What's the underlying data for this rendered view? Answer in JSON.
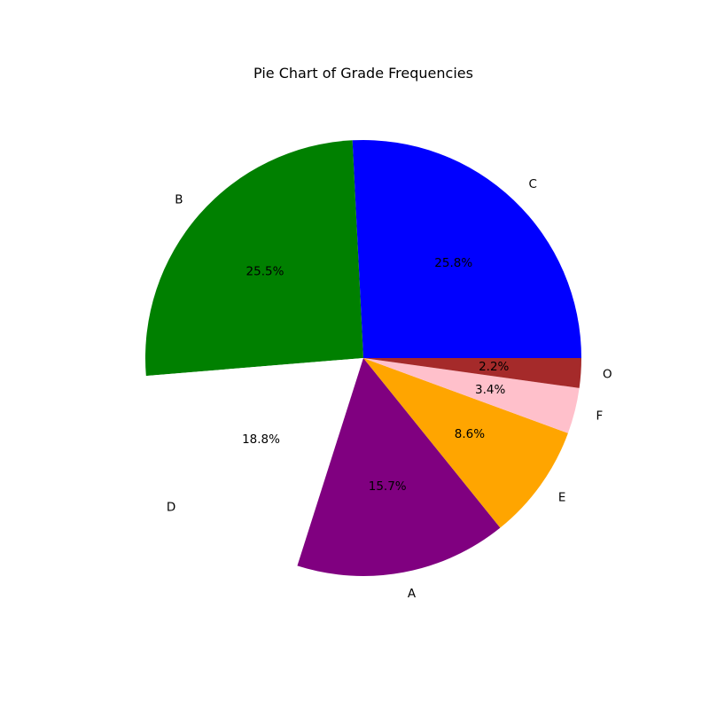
{
  "chart_data": {
    "type": "pie",
    "title": "Pie Chart of Grade Frequencies",
    "start_angle_deg": 0,
    "direction": "counterclockwise",
    "slices": [
      {
        "label": "C",
        "percent": 25.8,
        "percent_label": "25.8%",
        "color": "#0000ff"
      },
      {
        "label": "B",
        "percent": 25.5,
        "percent_label": "25.5%",
        "color": "#008000"
      },
      {
        "label": "D",
        "percent": 18.8,
        "percent_label": "18.8%",
        "color": "#ffffff"
      },
      {
        "label": "A",
        "percent": 15.7,
        "percent_label": "15.7%",
        "color": "#800080"
      },
      {
        "label": "E",
        "percent": 8.6,
        "percent_label": "8.6%",
        "color": "#ffa500"
      },
      {
        "label": "F",
        "percent": 3.4,
        "percent_label": "3.4%",
        "color": "#ffc0cb"
      },
      {
        "label": "O",
        "percent": 2.2,
        "percent_label": "2.2%",
        "color": "#a52a2a"
      }
    ]
  }
}
